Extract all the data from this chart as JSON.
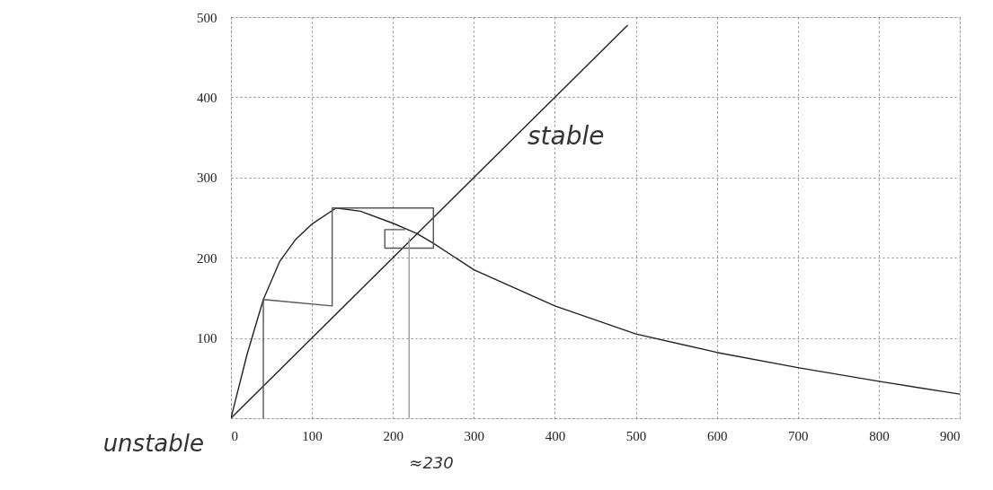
{
  "chart_data": {
    "type": "line",
    "series": [
      {
        "color": "#222222",
        "x": [
          0,
          20,
          40,
          60,
          80,
          100,
          130,
          160,
          200,
          230,
          250,
          300,
          400,
          500,
          600,
          700,
          800,
          900
        ],
        "values": [
          0,
          80,
          148,
          195,
          223,
          242,
          262,
          258,
          243,
          230,
          218,
          185,
          140,
          105,
          82,
          63,
          46,
          30
        ]
      },
      {
        "color": "#222222",
        "x": [
          0,
          490
        ],
        "values": [
          0,
          490
        ]
      },
      {
        "color": "#555555",
        "x": [
          40,
          40,
          125,
          125,
          250,
          250,
          190,
          190,
          215
        ],
        "values": [
          0,
          148,
          140,
          262,
          262,
          212,
          212,
          235,
          235
        ]
      },
      {
        "color": "#999999",
        "x": [
          220,
          220
        ],
        "values": [
          0,
          225
        ]
      }
    ],
    "xlim": [
      0,
      900
    ],
    "ylim": [
      0,
      500
    ],
    "xticks": [
      0,
      100,
      200,
      300,
      400,
      500,
      600,
      700,
      800,
      900
    ],
    "yticks": [
      {
        "value": 0,
        "label": null
      },
      100,
      200,
      300,
      400,
      500
    ],
    "grid": true,
    "marker": "none",
    "annotations": [
      "stable",
      "≈230",
      "unstable"
    ]
  }
}
